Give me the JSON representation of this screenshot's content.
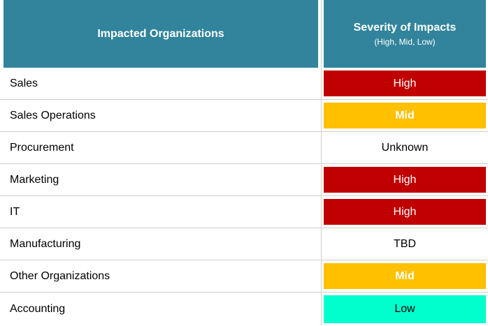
{
  "header": {
    "org_title": "Impacted Organizations",
    "severity_title": "Severity of Impacts",
    "severity_subtitle": "(High, Mid, Low)"
  },
  "colors": {
    "header_bg": "#31849b",
    "high": "#c00000",
    "mid": "#ffc000",
    "low": "#00ffcc"
  },
  "rows": [
    {
      "org": "Sales",
      "severity": "High",
      "level": "high"
    },
    {
      "org": "Sales Operations",
      "severity": "Mid",
      "level": "mid"
    },
    {
      "org": "Procurement",
      "severity": "Unknown",
      "level": "none"
    },
    {
      "org": "Marketing",
      "severity": "High",
      "level": "high"
    },
    {
      "org": "IT",
      "severity": "High",
      "level": "high"
    },
    {
      "org": "Manufacturing",
      "severity": "TBD",
      "level": "none"
    },
    {
      "org": "Other Organizations",
      "severity": "Mid",
      "level": "mid"
    },
    {
      "org": "Accounting",
      "severity": "Low",
      "level": "low"
    }
  ]
}
